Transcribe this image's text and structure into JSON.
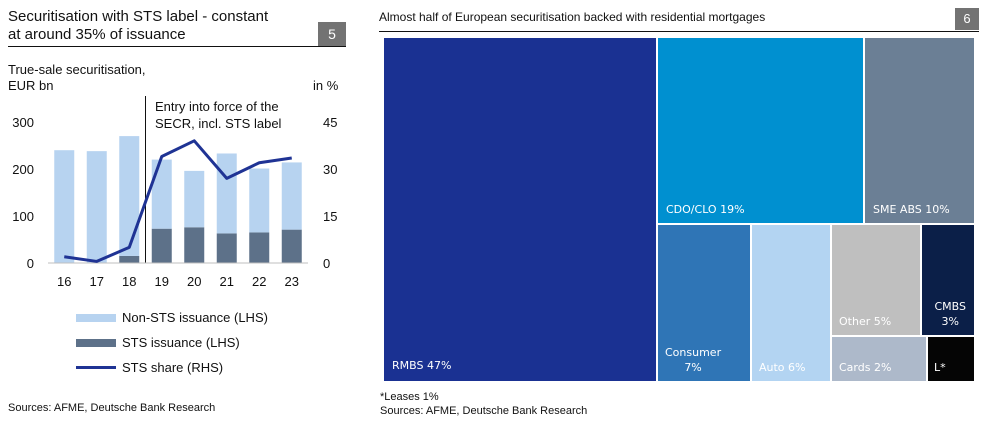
{
  "left": {
    "title_line1": "Securitisation with STS label - constant",
    "title_line2": "at around 35% of issuance",
    "chart_number": "5",
    "units_line1": "True-sale securitisation,",
    "units_line2": "EUR bn",
    "rhs_unit": "in %",
    "annotation_line1": "Entry into force of the",
    "annotation_line2": "SECR, incl. STS label",
    "source": "Sources: AFME, Deutsche Bank Research",
    "legend": [
      {
        "label": "Non-STS issuance (LHS)",
        "color": "#b7d3f0",
        "kind": "bar"
      },
      {
        "label": "STS issuance (LHS)",
        "color": "#5d7189",
        "kind": "bar"
      },
      {
        "label": "STS share (RHS)",
        "color": "#1f3394",
        "kind": "line"
      }
    ]
  },
  "right": {
    "title": "Almost half of European securitisation backed with residential mortgages",
    "chart_number": "6",
    "footnote": "*Leases 1%",
    "source": "Sources: AFME, Deutsche Bank Research"
  },
  "chart_data": [
    {
      "type": "bar",
      "title": "Securitisation with STS label - constant at around 35% of issuance",
      "categories": [
        "16",
        "17",
        "18",
        "19",
        "20",
        "21",
        "22",
        "23"
      ],
      "ylim": [
        0,
        300
      ],
      "y2lim": [
        0,
        45
      ],
      "yticks": [
        0,
        100,
        200,
        300
      ],
      "y2ticks": [
        0,
        15,
        30,
        45
      ],
      "series": [
        {
          "name": "Non-STS issuance (LHS)",
          "type": "bar",
          "stack": "lhs",
          "values": [
            240,
            238,
            255,
            147,
            120,
            170,
            136,
            143
          ]
        },
        {
          "name": "STS issuance (LHS)",
          "type": "bar",
          "stack": "lhs",
          "values": [
            0,
            0,
            15,
            73,
            76,
            63,
            65,
            71
          ]
        },
        {
          "name": "STS share (RHS)",
          "type": "line",
          "axis": "rhs",
          "values": [
            2,
            0.5,
            5,
            34,
            39,
            27,
            32,
            33.5
          ]
        }
      ],
      "annotation_between": [
        "18",
        "19"
      ],
      "grid": false,
      "legend": "bottom"
    },
    {
      "type": "treemap",
      "title": "Almost half of European securitisation backed with residential mortgages",
      "items": [
        {
          "name": "RMBS",
          "label": "RMBS 47%",
          "value": 47,
          "color": "#1a3192"
        },
        {
          "name": "CDO/CLO",
          "label": "CDO/CLO 19%",
          "value": 19,
          "color": "#0090d0"
        },
        {
          "name": "SME ABS",
          "label": "SME ABS 10%",
          "value": 10,
          "color": "#6b7f95"
        },
        {
          "name": "Consumer",
          "label_line1": "Consumer",
          "label_line2": "7%",
          "value": 7,
          "color": "#2f75b6"
        },
        {
          "name": "Auto",
          "label": "Auto 6%",
          "value": 6,
          "color": "#b3d4f2"
        },
        {
          "name": "Other",
          "label": "Other 5%",
          "value": 5,
          "color": "#bfbfbf"
        },
        {
          "name": "CMBS",
          "label_line1": "CMBS",
          "label_line2": "3%",
          "value": 3,
          "color": "#0b1f48"
        },
        {
          "name": "Cards",
          "label": "Cards 2%",
          "value": 2,
          "color": "#adb9ca"
        },
        {
          "name": "Leases",
          "label": "L*",
          "value": 1,
          "color": "#050505"
        }
      ]
    }
  ]
}
